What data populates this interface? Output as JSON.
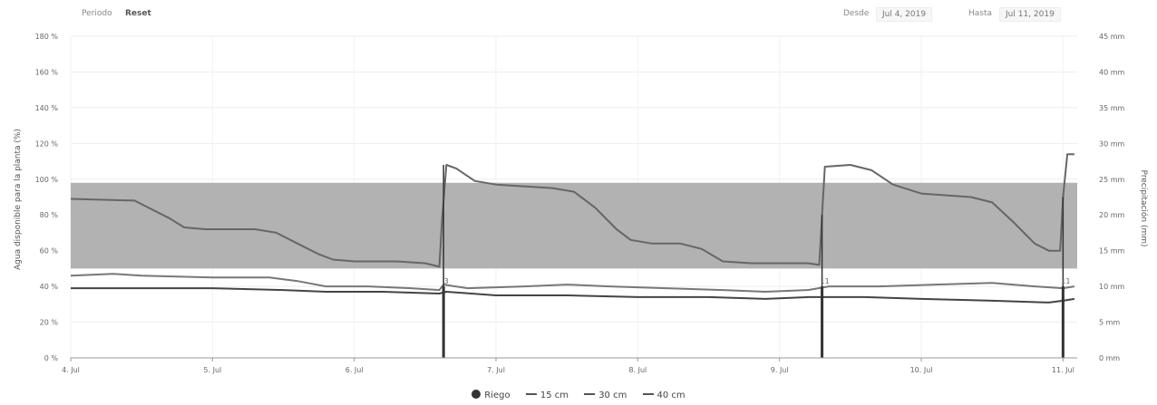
{
  "controls": {
    "period_label": "Periodo",
    "reset_label": "Reset",
    "from_label": "Desde",
    "from_value": "Jul 4, 2019",
    "to_label": "Hasta",
    "to_value": "Jul 11, 2019"
  },
  "chart_data": {
    "type": "line",
    "xlabel": "",
    "ylabel": "Agua disponible para la planta (%)",
    "y2label": "Precipitación (mm)",
    "xlim": [
      0,
      7.1
    ],
    "ylim": [
      0,
      180
    ],
    "y2lim": [
      0,
      45
    ],
    "x_ticks": [
      {
        "x": 0,
        "label": "4. Jul"
      },
      {
        "x": 1,
        "label": "5. Jul"
      },
      {
        "x": 2,
        "label": "6. Jul"
      },
      {
        "x": 3,
        "label": "7. Jul"
      },
      {
        "x": 4,
        "label": "8. Jul"
      },
      {
        "x": 5,
        "label": "9. Jul"
      },
      {
        "x": 6,
        "label": "10. Jul"
      },
      {
        "x": 7,
        "label": "11. Jul"
      }
    ],
    "y_ticks": [
      "0 %",
      "20 %",
      "40 %",
      "60 %",
      "80 %",
      "100 %",
      "120 %",
      "140 %",
      "160 %",
      "180 %"
    ],
    "y2_ticks": [
      "0 mm",
      "5 mm",
      "10 mm",
      "15 mm",
      "20 mm",
      "25 mm",
      "30 mm",
      "35 mm",
      "40 mm",
      "45 mm"
    ],
    "band": {
      "from": 50,
      "to": 98,
      "color": "#aaaaaa"
    },
    "series": [
      {
        "name": "15 cm",
        "color": "#666666",
        "points": [
          [
            0,
            89
          ],
          [
            0.45,
            88
          ],
          [
            0.5,
            86
          ],
          [
            0.7,
            78
          ],
          [
            0.8,
            73
          ],
          [
            0.95,
            72
          ],
          [
            1.3,
            72
          ],
          [
            1.45,
            70
          ],
          [
            1.6,
            64
          ],
          [
            1.75,
            58
          ],
          [
            1.85,
            55
          ],
          [
            2.0,
            54
          ],
          [
            2.3,
            54
          ],
          [
            2.5,
            53
          ],
          [
            2.6,
            51
          ],
          [
            2.62,
            78
          ],
          [
            2.65,
            108
          ],
          [
            2.72,
            106
          ],
          [
            2.85,
            99
          ],
          [
            3.0,
            97
          ],
          [
            3.4,
            95
          ],
          [
            3.55,
            93
          ],
          [
            3.7,
            84
          ],
          [
            3.85,
            72
          ],
          [
            3.95,
            66
          ],
          [
            4.1,
            64
          ],
          [
            4.3,
            64
          ],
          [
            4.45,
            61
          ],
          [
            4.6,
            54
          ],
          [
            4.8,
            53
          ],
          [
            5.2,
            53
          ],
          [
            5.28,
            52
          ],
          [
            5.3,
            80
          ],
          [
            5.32,
            107
          ],
          [
            5.5,
            108
          ],
          [
            5.65,
            105
          ],
          [
            5.8,
            97
          ],
          [
            6.0,
            92
          ],
          [
            6.35,
            90
          ],
          [
            6.5,
            87
          ],
          [
            6.65,
            76
          ],
          [
            6.8,
            64
          ],
          [
            6.9,
            60
          ],
          [
            6.98,
            60
          ],
          [
            7.0,
            90
          ],
          [
            7.03,
            114
          ],
          [
            7.08,
            114
          ]
        ]
      },
      {
        "name": "30 cm",
        "color": "#777777",
        "points": [
          [
            0,
            46
          ],
          [
            0.3,
            47
          ],
          [
            0.5,
            46
          ],
          [
            1.0,
            45
          ],
          [
            1.4,
            45
          ],
          [
            1.6,
            43
          ],
          [
            1.8,
            40
          ],
          [
            2.1,
            40
          ],
          [
            2.4,
            39
          ],
          [
            2.6,
            38
          ],
          [
            2.63,
            41
          ],
          [
            2.8,
            39
          ],
          [
            3.2,
            40
          ],
          [
            3.5,
            41
          ],
          [
            3.8,
            40
          ],
          [
            4.2,
            39
          ],
          [
            4.6,
            38
          ],
          [
            4.9,
            37
          ],
          [
            5.2,
            38
          ],
          [
            5.35,
            40
          ],
          [
            5.7,
            40
          ],
          [
            6.1,
            41
          ],
          [
            6.5,
            42
          ],
          [
            6.8,
            40
          ],
          [
            7.0,
            39
          ],
          [
            7.08,
            40
          ]
        ]
      },
      {
        "name": "40 cm",
        "color": "#444444",
        "points": [
          [
            0,
            39
          ],
          [
            0.5,
            39
          ],
          [
            1.0,
            39
          ],
          [
            1.5,
            38
          ],
          [
            1.8,
            37
          ],
          [
            2.2,
            37
          ],
          [
            2.6,
            36
          ],
          [
            2.65,
            37
          ],
          [
            3.0,
            35
          ],
          [
            3.5,
            35
          ],
          [
            4.0,
            34
          ],
          [
            4.5,
            34
          ],
          [
            4.9,
            33
          ],
          [
            5.2,
            34
          ],
          [
            5.6,
            34
          ],
          [
            6.0,
            33
          ],
          [
            6.5,
            32
          ],
          [
            6.9,
            31
          ],
          [
            7.0,
            32
          ],
          [
            7.08,
            33
          ]
        ]
      }
    ],
    "irrigation": {
      "name": "Riego",
      "color": "#333333",
      "events": [
        {
          "x": 2.63,
          "mm": 10,
          "label": "3"
        },
        {
          "x": 5.3,
          "mm": 10,
          "label": "11"
        },
        {
          "x": 7.0,
          "mm": 10,
          "label": "11"
        }
      ]
    },
    "legend": [
      "Riego",
      "15 cm",
      "30 cm",
      "40 cm"
    ],
    "grid": true,
    "legend_position": "bottom-center"
  }
}
